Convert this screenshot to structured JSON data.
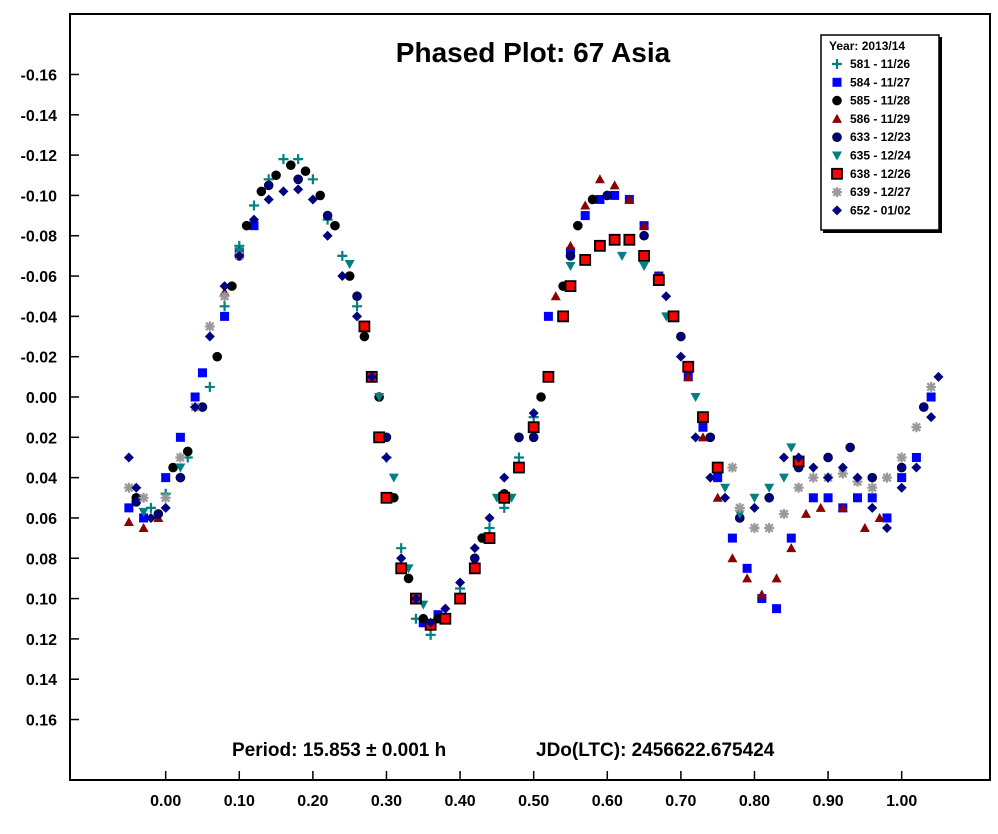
{
  "chart_data": {
    "type": "scatter",
    "title": "Phased Plot: 67 Asia",
    "xlabel": "",
    "ylabel": "",
    "xlim": [
      -0.13,
      1.12
    ],
    "ylim": [
      0.19,
      -0.19
    ],
    "x_inverted": false,
    "y_inverted": true,
    "grid": false,
    "x_ticks": [
      0.0,
      0.1,
      0.2,
      0.3,
      0.4,
      0.5,
      0.6,
      0.7,
      0.8,
      0.9,
      1.0
    ],
    "x_tick_labels": [
      "0.00",
      "0.10",
      "0.20",
      "0.30",
      "0.40",
      "0.50",
      "0.60",
      "0.70",
      "0.80",
      "0.90",
      "1.00"
    ],
    "y_ticks": [
      -0.16,
      -0.14,
      -0.12,
      -0.1,
      -0.08,
      -0.06,
      -0.04,
      -0.02,
      0.0,
      0.02,
      0.04,
      0.06,
      0.08,
      0.1,
      0.12,
      0.14,
      0.16
    ],
    "y_tick_labels": [
      "-0.16",
      "-0.14",
      "-0.12",
      "-0.10",
      "-0.08",
      "-0.06",
      "-0.04",
      "-0.02",
      "0.00",
      "0.02",
      "0.04",
      "0.06",
      "0.08",
      "0.10",
      "0.12",
      "0.14",
      "0.16"
    ],
    "legend": {
      "title": "Year: 2013/14",
      "placement": "top-right"
    },
    "annotations": {
      "period": "Period: 15.853 ± 0.001 h",
      "epoch": "JDo(LTC): 2456622.675424"
    },
    "series": [
      {
        "name": "581 - 11/26",
        "marker": "plus",
        "color": "#008080",
        "points": [
          [
            -0.02,
            0.055
          ],
          [
            0.0,
            0.048
          ],
          [
            0.03,
            0.03
          ],
          [
            0.06,
            -0.005
          ],
          [
            0.08,
            -0.045
          ],
          [
            0.1,
            -0.075
          ],
          [
            0.12,
            -0.095
          ],
          [
            0.14,
            -0.108
          ],
          [
            0.16,
            -0.118
          ],
          [
            0.18,
            -0.118
          ],
          [
            0.2,
            -0.108
          ],
          [
            0.22,
            -0.088
          ],
          [
            0.24,
            -0.07
          ],
          [
            0.26,
            -0.045
          ],
          [
            0.28,
            -0.01
          ],
          [
            0.3,
            0.03
          ],
          [
            0.32,
            0.075
          ],
          [
            0.34,
            0.11
          ],
          [
            0.36,
            0.118
          ],
          [
            0.38,
            0.108
          ],
          [
            0.4,
            0.095
          ],
          [
            0.42,
            0.085
          ],
          [
            0.44,
            0.065
          ],
          [
            0.46,
            0.055
          ],
          [
            0.48,
            0.03
          ],
          [
            0.5,
            0.01
          ]
        ]
      },
      {
        "name": "584 - 11/27",
        "marker": "square",
        "color": "#0000ff",
        "points": [
          [
            -0.05,
            0.055
          ],
          [
            -0.03,
            0.06
          ],
          [
            0.0,
            0.04
          ],
          [
            0.02,
            0.02
          ],
          [
            0.04,
            0.0
          ],
          [
            0.05,
            -0.012
          ],
          [
            0.08,
            -0.04
          ],
          [
            0.1,
            -0.072
          ],
          [
            0.12,
            -0.085
          ],
          [
            0.35,
            0.112
          ],
          [
            0.37,
            0.108
          ],
          [
            0.52,
            -0.04
          ],
          [
            0.55,
            -0.072
          ],
          [
            0.57,
            -0.09
          ],
          [
            0.59,
            -0.098
          ],
          [
            0.61,
            -0.1
          ],
          [
            0.63,
            -0.098
          ],
          [
            0.65,
            -0.085
          ],
          [
            0.67,
            -0.06
          ],
          [
            0.69,
            -0.04
          ],
          [
            0.71,
            -0.01
          ],
          [
            0.73,
            0.015
          ],
          [
            0.75,
            0.04
          ],
          [
            0.77,
            0.07
          ],
          [
            0.79,
            0.085
          ],
          [
            0.81,
            0.1
          ],
          [
            0.83,
            0.105
          ],
          [
            0.85,
            0.07
          ],
          [
            0.88,
            0.05
          ],
          [
            0.9,
            0.05
          ],
          [
            0.92,
            0.055
          ],
          [
            0.94,
            0.05
          ],
          [
            0.96,
            0.05
          ],
          [
            0.98,
            0.06
          ],
          [
            1.0,
            0.04
          ],
          [
            1.02,
            0.03
          ],
          [
            1.04,
            0.0
          ]
        ]
      },
      {
        "name": "585 - 11/28",
        "marker": "circle",
        "color": "#000000",
        "points": [
          [
            -0.04,
            0.05
          ],
          [
            0.01,
            0.035
          ],
          [
            0.03,
            0.027
          ],
          [
            0.07,
            -0.02
          ],
          [
            0.09,
            -0.055
          ],
          [
            0.11,
            -0.085
          ],
          [
            0.13,
            -0.102
          ],
          [
            0.15,
            -0.11
          ],
          [
            0.17,
            -0.115
          ],
          [
            0.19,
            -0.112
          ],
          [
            0.21,
            -0.1
          ],
          [
            0.23,
            -0.085
          ],
          [
            0.25,
            -0.06
          ],
          [
            0.27,
            -0.03
          ],
          [
            0.29,
            0.0
          ],
          [
            0.31,
            0.05
          ],
          [
            0.33,
            0.09
          ],
          [
            0.35,
            0.11
          ],
          [
            0.37,
            0.11
          ],
          [
            0.4,
            0.1
          ],
          [
            0.43,
            0.07
          ],
          [
            0.46,
            0.048
          ],
          [
            0.48,
            0.02
          ],
          [
            0.51,
            0.0
          ],
          [
            0.54,
            -0.055
          ],
          [
            0.56,
            -0.085
          ],
          [
            0.58,
            -0.098
          ]
        ]
      },
      {
        "name": "586 - 11/29",
        "marker": "triangle-up",
        "color": "#8b0000",
        "points": [
          [
            -0.05,
            0.062
          ],
          [
            -0.03,
            0.065
          ],
          [
            -0.01,
            0.06
          ],
          [
            0.08,
            -0.052
          ],
          [
            0.53,
            -0.05
          ],
          [
            0.55,
            -0.075
          ],
          [
            0.57,
            -0.095
          ],
          [
            0.59,
            -0.108
          ],
          [
            0.61,
            -0.105
          ],
          [
            0.63,
            -0.098
          ],
          [
            0.65,
            -0.085
          ],
          [
            0.67,
            -0.06
          ],
          [
            0.69,
            -0.04
          ],
          [
            0.71,
            -0.01
          ],
          [
            0.73,
            0.02
          ],
          [
            0.75,
            0.05
          ],
          [
            0.77,
            0.08
          ],
          [
            0.79,
            0.09
          ],
          [
            0.81,
            0.098
          ],
          [
            0.83,
            0.09
          ],
          [
            0.85,
            0.075
          ],
          [
            0.87,
            0.058
          ],
          [
            0.89,
            0.055
          ],
          [
            0.92,
            0.055
          ],
          [
            0.95,
            0.065
          ],
          [
            0.97,
            0.06
          ]
        ]
      },
      {
        "name": "633 - 12/23",
        "marker": "circle",
        "color": "#000080",
        "points": [
          [
            -0.04,
            0.052
          ],
          [
            -0.01,
            0.058
          ],
          [
            0.02,
            0.04
          ],
          [
            0.05,
            0.005
          ],
          [
            0.1,
            -0.07
          ],
          [
            0.14,
            -0.105
          ],
          [
            0.18,
            -0.108
          ],
          [
            0.22,
            -0.09
          ],
          [
            0.26,
            -0.05
          ],
          [
            0.3,
            0.02
          ],
          [
            0.34,
            0.1
          ],
          [
            0.38,
            0.11
          ],
          [
            0.42,
            0.08
          ],
          [
            0.46,
            0.05
          ],
          [
            0.5,
            0.02
          ],
          [
            0.55,
            -0.07
          ],
          [
            0.6,
            -0.1
          ],
          [
            0.65,
            -0.08
          ],
          [
            0.7,
            -0.03
          ],
          [
            0.74,
            0.02
          ],
          [
            0.78,
            0.06
          ],
          [
            0.82,
            0.05
          ],
          [
            0.86,
            0.035
          ],
          [
            0.9,
            0.03
          ],
          [
            0.93,
            0.025
          ],
          [
            0.96,
            0.04
          ],
          [
            1.0,
            0.035
          ],
          [
            1.03,
            0.005
          ]
        ]
      },
      {
        "name": "635 - 12/24",
        "marker": "triangle-down",
        "color": "#008080",
        "points": [
          [
            -0.03,
            0.057
          ],
          [
            0.02,
            0.035
          ],
          [
            0.1,
            -0.072
          ],
          [
            0.25,
            -0.066
          ],
          [
            0.27,
            -0.035
          ],
          [
            0.29,
            0.0
          ],
          [
            0.31,
            0.04
          ],
          [
            0.33,
            0.085
          ],
          [
            0.35,
            0.103
          ],
          [
            0.45,
            0.05
          ],
          [
            0.47,
            0.05
          ],
          [
            0.55,
            -0.065
          ],
          [
            0.59,
            -0.075
          ],
          [
            0.62,
            -0.07
          ],
          [
            0.65,
            -0.065
          ],
          [
            0.68,
            -0.04
          ],
          [
            0.72,
            0.0
          ],
          [
            0.76,
            0.045
          ],
          [
            0.78,
            0.058
          ],
          [
            0.8,
            0.05
          ],
          [
            0.82,
            0.045
          ],
          [
            0.84,
            0.04
          ],
          [
            0.85,
            0.025
          ]
        ]
      },
      {
        "name": "638 - 12/26",
        "marker": "square",
        "color": "#ff0000",
        "points": [
          [
            0.32,
            0.085
          ],
          [
            0.34,
            0.1
          ],
          [
            0.36,
            0.113
          ],
          [
            0.38,
            0.11
          ],
          [
            0.4,
            0.1
          ],
          [
            0.42,
            0.085
          ],
          [
            0.44,
            0.07
          ],
          [
            0.46,
            0.05
          ],
          [
            0.48,
            0.035
          ],
          [
            0.5,
            0.015
          ],
          [
            0.52,
            -0.01
          ],
          [
            0.54,
            -0.04
          ],
          [
            0.55,
            -0.055
          ],
          [
            0.57,
            -0.068
          ],
          [
            0.59,
            -0.075
          ],
          [
            0.61,
            -0.078
          ],
          [
            0.63,
            -0.078
          ],
          [
            0.65,
            -0.07
          ],
          [
            0.67,
            -0.058
          ],
          [
            0.69,
            -0.04
          ],
          [
            0.71,
            -0.015
          ],
          [
            0.73,
            0.01
          ],
          [
            0.75,
            0.035
          ],
          [
            0.27,
            -0.035
          ],
          [
            0.28,
            -0.01
          ],
          [
            0.29,
            0.02
          ],
          [
            0.3,
            0.05
          ],
          [
            0.86,
            0.032
          ]
        ]
      },
      {
        "name": "639 - 12/27",
        "marker": "asterisk",
        "color": "#999999",
        "points": [
          [
            -0.05,
            0.045
          ],
          [
            -0.03,
            0.05
          ],
          [
            0.0,
            0.05
          ],
          [
            0.02,
            0.03
          ],
          [
            0.04,
            0.005
          ],
          [
            0.06,
            -0.035
          ],
          [
            0.08,
            -0.05
          ],
          [
            0.1,
            -0.07
          ],
          [
            0.77,
            0.035
          ],
          [
            0.78,
            0.055
          ],
          [
            0.8,
            0.065
          ],
          [
            0.82,
            0.065
          ],
          [
            0.84,
            0.058
          ],
          [
            0.86,
            0.045
          ],
          [
            0.88,
            0.04
          ],
          [
            0.9,
            0.04
          ],
          [
            0.92,
            0.038
          ],
          [
            0.94,
            0.042
          ],
          [
            0.96,
            0.045
          ],
          [
            0.98,
            0.04
          ],
          [
            1.0,
            0.03
          ],
          [
            1.02,
            0.015
          ],
          [
            1.04,
            -0.005
          ]
        ]
      },
      {
        "name": "652 - 01/02",
        "marker": "diamond",
        "color": "#000080",
        "points": [
          [
            -0.05,
            0.03
          ],
          [
            -0.04,
            0.045
          ],
          [
            -0.02,
            0.06
          ],
          [
            0.0,
            0.055
          ],
          [
            0.02,
            0.04
          ],
          [
            0.04,
            0.005
          ],
          [
            0.06,
            -0.03
          ],
          [
            0.08,
            -0.055
          ],
          [
            0.1,
            -0.07
          ],
          [
            0.12,
            -0.088
          ],
          [
            0.14,
            -0.098
          ],
          [
            0.16,
            -0.102
          ],
          [
            0.18,
            -0.103
          ],
          [
            0.2,
            -0.098
          ],
          [
            0.22,
            -0.08
          ],
          [
            0.24,
            -0.06
          ],
          [
            0.26,
            -0.04
          ],
          [
            0.28,
            -0.01
          ],
          [
            0.3,
            0.03
          ],
          [
            0.32,
            0.08
          ],
          [
            0.34,
            0.1
          ],
          [
            0.36,
            0.112
          ],
          [
            0.38,
            0.105
          ],
          [
            0.4,
            0.092
          ],
          [
            0.42,
            0.075
          ],
          [
            0.44,
            0.06
          ],
          [
            0.46,
            0.04
          ],
          [
            0.48,
            0.02
          ],
          [
            0.5,
            0.008
          ],
          [
            0.68,
            -0.05
          ],
          [
            0.7,
            -0.02
          ],
          [
            0.72,
            0.02
          ],
          [
            0.74,
            0.04
          ],
          [
            0.76,
            0.05
          ],
          [
            0.8,
            0.055
          ],
          [
            0.84,
            0.03
          ],
          [
            0.86,
            0.03
          ],
          [
            0.88,
            0.035
          ],
          [
            0.9,
            0.04
          ],
          [
            0.92,
            0.035
          ],
          [
            0.94,
            0.04
          ],
          [
            0.96,
            0.055
          ],
          [
            0.98,
            0.065
          ],
          [
            1.0,
            0.045
          ],
          [
            1.02,
            0.035
          ],
          [
            1.04,
            0.01
          ],
          [
            1.05,
            -0.01
          ]
        ]
      }
    ]
  }
}
